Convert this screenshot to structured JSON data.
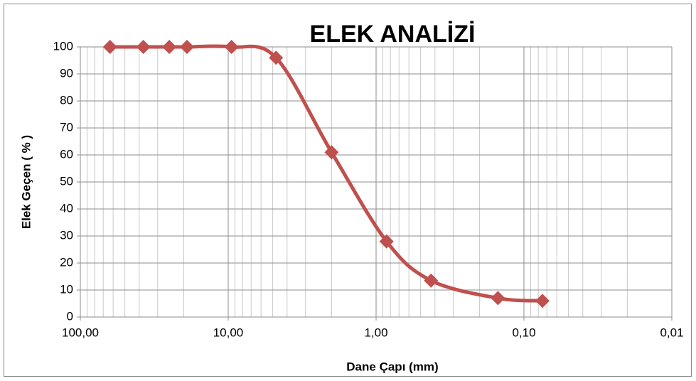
{
  "chart_data": {
    "type": "line",
    "title": "ELEK ANALİZİ",
    "x_label": "Dane Çapı  (mm)",
    "y_label": "Elek Geçen ( % )",
    "x_log": true,
    "grid": true,
    "series": [
      {
        "name": "Elek Geçen",
        "color": "#c0504d",
        "x": [
          63,
          37.5,
          25,
          19,
          9.5,
          4.75,
          2,
          0.85,
          0.425,
          0.15,
          0.075
        ],
        "values": [
          100,
          100,
          100,
          100,
          100,
          96,
          61,
          28,
          13.5,
          7,
          6
        ]
      }
    ],
    "xlim": [
      100,
      0.01
    ],
    "xticks": [
      {
        "value": 100,
        "label": "100,00"
      },
      {
        "value": 10,
        "label": "10,00"
      },
      {
        "value": 1,
        "label": "1,00"
      },
      {
        "value": 0.1,
        "label": "0,10"
      },
      {
        "value": 0.01,
        "label": "0,01"
      }
    ],
    "xminorticks": [
      90,
      80,
      70,
      60,
      50,
      40,
      30,
      20,
      9,
      8,
      7,
      6,
      5,
      4,
      3,
      2,
      0.9,
      0.8,
      0.7,
      0.6,
      0.5,
      0.4,
      0.3,
      0.2,
      0.09,
      0.08,
      0.07,
      0.06,
      0.05,
      0.04,
      0.03,
      0.02
    ],
    "ylim": [
      0,
      100
    ],
    "yticks": [
      0,
      10,
      20,
      30,
      40,
      50,
      60,
      70,
      80,
      90,
      100
    ]
  }
}
